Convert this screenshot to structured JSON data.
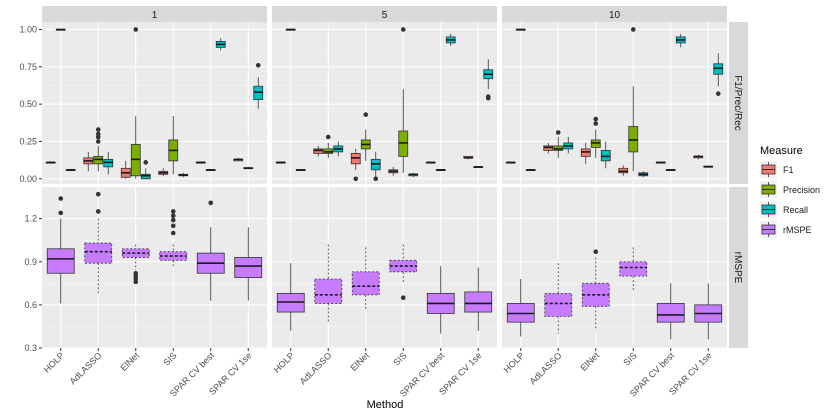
{
  "chart_data": {
    "type": "boxplot",
    "xlabel": "Method",
    "methods": [
      "HOLP",
      "AdLASSO",
      "ElNet",
      "SIS",
      "SPAR CV best",
      "SPAR CV 1se"
    ],
    "facet_columns": [
      "1",
      "5",
      "10"
    ],
    "facet_rows": [
      "F1/Prec/Rec",
      "rMSPE"
    ],
    "legend": {
      "title": "Measure",
      "position": "right",
      "entries": [
        {
          "name": "F1",
          "color": "#F8766D"
        },
        {
          "name": "Precision",
          "color": "#7CAE00"
        },
        {
          "name": "Recall",
          "color": "#00BFC4"
        },
        {
          "name": "rMSPE",
          "color": "#C77CFF"
        }
      ]
    },
    "top_axis": {
      "ylim": [
        -0.035,
        1.05
      ],
      "ticks": [
        "0.00",
        "0.25",
        "0.50",
        "0.75",
        "1.00"
      ]
    },
    "bottom_axis": {
      "ylim": [
        0.3,
        1.42
      ],
      "ticks": [
        "0.3",
        "0.6",
        "0.9",
        "1.2"
      ]
    },
    "top_boxes": {
      "1": [
        [
          {
            "m": "F1",
            "q": [
              0.11,
              0.11,
              0.11,
              0.11,
              0.11
            ]
          },
          {
            "m": "Precision",
            "q": [
              1,
              1,
              1,
              1,
              1
            ]
          },
          {
            "m": "Recall",
            "q": [
              0.06,
              0.06,
              0.06,
              0.06,
              0.06
            ]
          }
        ],
        [
          {
            "m": "F1",
            "q": [
              0.05,
              0.1,
              0.12,
              0.14,
              0.18
            ],
            "o": []
          },
          {
            "m": "Precision",
            "q": [
              0.05,
              0.1,
              0.13,
              0.15,
              0.22
            ],
            "o": [
              0.25,
              0.28,
              0.3,
              0.33
            ]
          },
          {
            "m": "Recall",
            "q": [
              0.03,
              0.08,
              0.11,
              0.13,
              0.18
            ],
            "o": []
          }
        ],
        [
          {
            "m": "F1",
            "q": [
              0,
              0.01,
              0.04,
              0.07,
              0.12
            ],
            "o": []
          },
          {
            "m": "Precision",
            "q": [
              0,
              0.02,
              0.13,
              0.23,
              0.42
            ],
            "o": [
              1.0
            ]
          },
          {
            "m": "Recall",
            "q": [
              0,
              0,
              0.02,
              0.03,
              0.07
            ],
            "o": [
              0.11
            ]
          }
        ],
        [
          {
            "m": "F1",
            "q": [
              0.02,
              0.03,
              0.04,
              0.05,
              0.07
            ],
            "o": []
          },
          {
            "m": "Precision",
            "q": [
              0.03,
              0.12,
              0.19,
              0.26,
              0.42
            ],
            "o": []
          },
          {
            "m": "Recall",
            "q": [
              0.01,
              0.02,
              0.025,
              0.03,
              0.04
            ],
            "o": []
          }
        ],
        [
          {
            "m": "F1",
            "q": [
              0.11,
              0.11,
              0.11,
              0.11,
              0.11
            ]
          },
          {
            "m": "Precision",
            "q": [
              0.06,
              0.06,
              0.06,
              0.06,
              0.06
            ]
          },
          {
            "m": "Recall",
            "q": [
              0.86,
              0.88,
              0.9,
              0.92,
              0.94
            ],
            "o": []
          }
        ],
        [
          {
            "m": "F1",
            "q": [
              0.12,
              0.12,
              0.13,
              0.13,
              0.14
            ],
            "o": []
          },
          {
            "m": "Precision",
            "q": [
              0.065,
              0.07,
              0.07,
              0.075,
              0.08
            ],
            "o": []
          },
          {
            "m": "Recall",
            "q": [
              0.47,
              0.53,
              0.58,
              0.62,
              0.68
            ],
            "o": [
              0.76
            ]
          }
        ]
      ],
      "5": [
        [
          {
            "m": "F1",
            "q": [
              0.11,
              0.11,
              0.11,
              0.11,
              0.11
            ]
          },
          {
            "m": "Precision",
            "q": [
              1,
              1,
              1,
              1,
              1
            ]
          },
          {
            "m": "Recall",
            "q": [
              0.06,
              0.06,
              0.06,
              0.06,
              0.06
            ]
          }
        ],
        [
          {
            "m": "F1",
            "q": [
              0.15,
              0.17,
              0.19,
              0.2,
              0.22
            ],
            "o": []
          },
          {
            "m": "Precision",
            "q": [
              0.14,
              0.17,
              0.18,
              0.2,
              0.24
            ],
            "o": [
              0.28
            ]
          },
          {
            "m": "Recall",
            "q": [
              0.15,
              0.18,
              0.2,
              0.22,
              0.25
            ],
            "o": []
          }
        ],
        [
          {
            "m": "F1",
            "q": [
              0.06,
              0.1,
              0.14,
              0.17,
              0.2
            ],
            "o": [
              0.0
            ]
          },
          {
            "m": "Precision",
            "q": [
              0.12,
              0.2,
              0.23,
              0.26,
              0.33
            ],
            "o": [
              0.43
            ]
          },
          {
            "m": "Recall",
            "q": [
              0.01,
              0.06,
              0.1,
              0.13,
              0.18
            ],
            "o": [
              0.0
            ]
          }
        ],
        [
          {
            "m": "F1",
            "q": [
              0.02,
              0.04,
              0.05,
              0.06,
              0.08
            ],
            "o": []
          },
          {
            "m": "Precision",
            "q": [
              0.04,
              0.15,
              0.24,
              0.32,
              0.6
            ],
            "o": [
              1.0
            ]
          },
          {
            "m": "Recall",
            "q": [
              0.01,
              0.02,
              0.03,
              0.03,
              0.04
            ],
            "o": []
          }
        ],
        [
          {
            "m": "F1",
            "q": [
              0.11,
              0.11,
              0.11,
              0.11,
              0.11
            ]
          },
          {
            "m": "Precision",
            "q": [
              0.06,
              0.06,
              0.06,
              0.06,
              0.06
            ]
          },
          {
            "m": "Recall",
            "q": [
              0.89,
              0.91,
              0.93,
              0.95,
              0.97
            ],
            "o": []
          }
        ],
        [
          {
            "m": "F1",
            "q": [
              0.13,
              0.14,
              0.14,
              0.15,
              0.15
            ],
            "o": []
          },
          {
            "m": "Precision",
            "q": [
              0.075,
              0.075,
              0.08,
              0.08,
              0.085
            ],
            "o": []
          },
          {
            "m": "Recall",
            "q": [
              0.6,
              0.67,
              0.7,
              0.73,
              0.8
            ],
            "o": [
              0.55,
              0.54
            ]
          }
        ]
      ],
      "10": [
        [
          {
            "m": "F1",
            "q": [
              0.11,
              0.11,
              0.11,
              0.11,
              0.11
            ]
          },
          {
            "m": "Precision",
            "q": [
              1,
              1,
              1,
              1,
              1
            ]
          },
          {
            "m": "Recall",
            "q": [
              0.06,
              0.06,
              0.06,
              0.06,
              0.06
            ]
          }
        ],
        [
          {
            "m": "F1",
            "q": [
              0.17,
              0.19,
              0.21,
              0.22,
              0.24
            ],
            "o": []
          },
          {
            "m": "Precision",
            "q": [
              0.14,
              0.19,
              0.2,
              0.22,
              0.28
            ],
            "o": [
              0.31
            ]
          },
          {
            "m": "Recall",
            "q": [
              0.17,
              0.2,
              0.22,
              0.24,
              0.28
            ],
            "o": []
          }
        ],
        [
          {
            "m": "F1",
            "q": [
              0.1,
              0.15,
              0.18,
              0.2,
              0.24
            ],
            "o": []
          },
          {
            "m": "Precision",
            "q": [
              0.14,
              0.21,
              0.24,
              0.26,
              0.33
            ],
            "o": [
              0.37,
              0.4
            ]
          },
          {
            "m": "Recall",
            "q": [
              0.07,
              0.12,
              0.15,
              0.19,
              0.25
            ],
            "o": []
          }
        ],
        [
          {
            "m": "F1",
            "q": [
              0.02,
              0.04,
              0.05,
              0.07,
              0.09
            ],
            "o": []
          },
          {
            "m": "Precision",
            "q": [
              0.05,
              0.18,
              0.26,
              0.35,
              0.62
            ],
            "o": [
              1.0
            ]
          },
          {
            "m": "Recall",
            "q": [
              0.01,
              0.02,
              0.03,
              0.04,
              0.05
            ],
            "o": []
          }
        ],
        [
          {
            "m": "F1",
            "q": [
              0.11,
              0.11,
              0.11,
              0.11,
              0.11
            ]
          },
          {
            "m": "Precision",
            "q": [
              0.06,
              0.06,
              0.06,
              0.06,
              0.06
            ]
          },
          {
            "m": "Recall",
            "q": [
              0.88,
              0.91,
              0.93,
              0.95,
              0.97
            ],
            "o": []
          }
        ],
        [
          {
            "m": "F1",
            "q": [
              0.13,
              0.14,
              0.15,
              0.15,
              0.16
            ],
            "o": []
          },
          {
            "m": "Precision",
            "q": [
              0.075,
              0.08,
              0.08,
              0.085,
              0.09
            ],
            "o": []
          },
          {
            "m": "Recall",
            "q": [
              0.62,
              0.7,
              0.74,
              0.77,
              0.84
            ],
            "o": [
              0.57
            ]
          }
        ]
      ]
    },
    "bottom_boxes": {
      "1": [
        {
          "q": [
            0.61,
            0.82,
            0.92,
            0.99,
            1.2
          ],
          "o": [
            1.24,
            1.34
          ]
        },
        {
          "q": [
            0.68,
            0.89,
            0.97,
            1.03,
            1.2
          ],
          "o": [
            1.25,
            1.37
          ]
        },
        {
          "q": [
            0.84,
            0.93,
            0.96,
            0.99,
            1.02
          ],
          "o": [
            0.82,
            0.8,
            0.78,
            0.76
          ]
        },
        {
          "q": [
            0.87,
            0.91,
            0.94,
            0.97,
            1.02
          ],
          "o": [
            1.1,
            1.15,
            1.19,
            1.22,
            1.25
          ]
        },
        {
          "q": [
            0.63,
            0.82,
            0.89,
            0.96,
            1.14
          ],
          "o": [
            1.31
          ]
        },
        {
          "q": [
            0.63,
            0.79,
            0.87,
            0.93,
            1.14
          ],
          "o": []
        }
      ],
      "5": [
        {
          "q": [
            0.42,
            0.55,
            0.62,
            0.68,
            0.89
          ],
          "o": []
        },
        {
          "q": [
            0.48,
            0.61,
            0.67,
            0.78,
            1.02
          ],
          "o": []
        },
        {
          "q": [
            0.56,
            0.67,
            0.73,
            0.83,
            1.0
          ],
          "o": []
        },
        {
          "q": [
            0.75,
            0.83,
            0.87,
            0.91,
            1.02
          ],
          "o": [
            0.65
          ]
        },
        {
          "q": [
            0.4,
            0.54,
            0.61,
            0.68,
            0.87
          ],
          "o": []
        },
        {
          "q": [
            0.42,
            0.55,
            0.61,
            0.69,
            0.86
          ],
          "o": []
        }
      ],
      "10": [
        {
          "q": [
            0.38,
            0.48,
            0.54,
            0.61,
            0.78
          ],
          "o": []
        },
        {
          "q": [
            0.4,
            0.52,
            0.61,
            0.68,
            0.89
          ],
          "o": []
        },
        {
          "q": [
            0.42,
            0.59,
            0.67,
            0.75,
            0.93
          ],
          "o": [
            0.97
          ]
        },
        {
          "q": [
            0.7,
            0.8,
            0.86,
            0.9,
            1.0
          ],
          "o": []
        },
        {
          "q": [
            0.36,
            0.48,
            0.53,
            0.61,
            0.75
          ],
          "o": []
        },
        {
          "q": [
            0.36,
            0.48,
            0.54,
            0.6,
            0.75
          ],
          "o": []
        }
      ]
    }
  }
}
